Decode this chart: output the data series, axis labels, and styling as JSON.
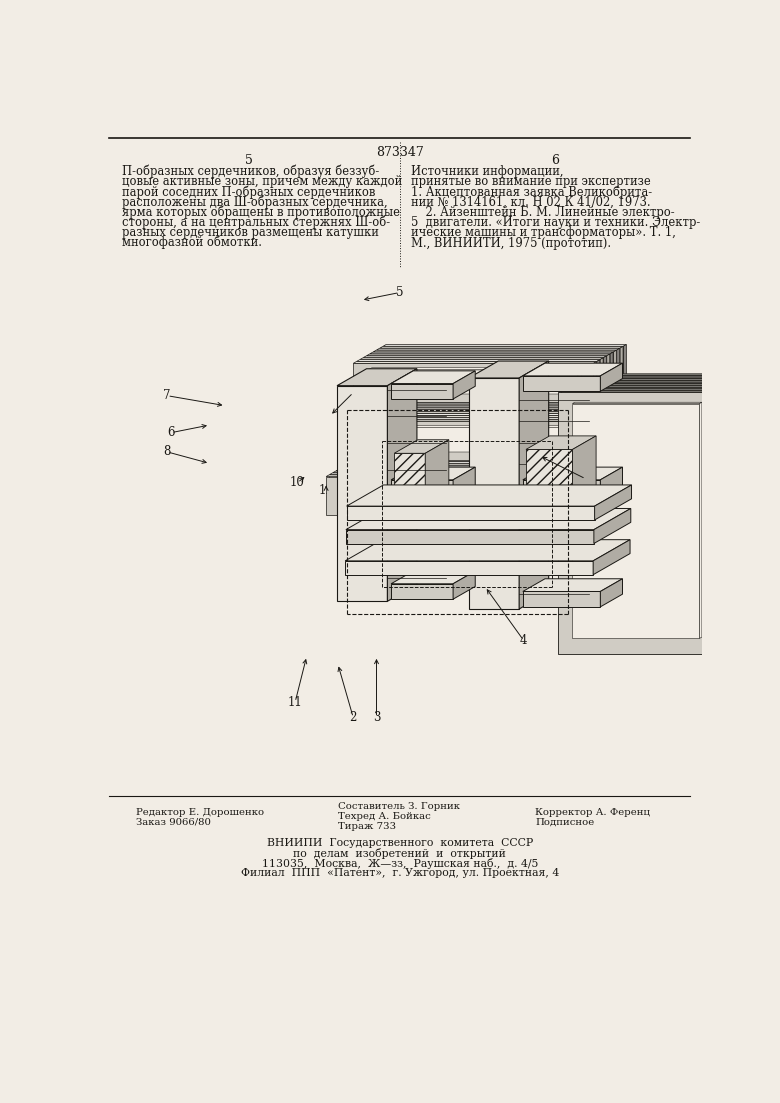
{
  "page_number": "873347",
  "left_col_number": "5",
  "right_col_number": "6",
  "left_text": [
    "П-образных сердечников, образуя беззуб-",
    "цовые активные зоны, причем между каждой",
    "парой соседних П-образных сердечников",
    "расположены два Ш-образных сердечника,",
    "ярма которых обращены в противоположные",
    "стороны, а на центральных стержнях Ш-об-",
    "разных сердечников размещены катушки",
    "многофазной обмотки."
  ],
  "right_title": [
    "Источники информации,",
    "принятые во внимание при экспертизе"
  ],
  "right_body": [
    "1. Акцептованная заявка Великобрита-",
    "нии № 1314161, кл. Н 02 К 41/02, 1973.",
    "    2. Айзенштейн Б. М. Линейные электро-",
    "5  двигатели. «Итоги науки и техники. Электр-",
    "ические машины и трансформаторы». Т. 1,",
    "М., ВИНИИТИ, 1975 (прототип)."
  ],
  "bottom_editor": "Редактор Е. Дорошенко",
  "bottom_order": "Заказ 9066/80",
  "bottom_comp": "Составитель З. Горник",
  "bottom_tech": "Техред А. Бойкас",
  "bottom_circ": "Тираж 733",
  "bottom_corr": "Корректор А. Ференц",
  "bottom_sign": "Подписное",
  "org1": "ВНИИПИ  Государственного  комитета  СССР",
  "org2": "по  делам  изобретений  и  открытий",
  "org3": "113035,  Москва,  Ж—зз,  Раушская наб.,  д. 4/5",
  "org4": "Филиал  ППП  «Патент»,  г. Ужгород, ул. Проектная, 4",
  "bg_color": "#f2ede5",
  "line_color": "#1a1814",
  "font_size_body": 8.3,
  "font_size_small": 7.3,
  "font_size_num": 9.0
}
